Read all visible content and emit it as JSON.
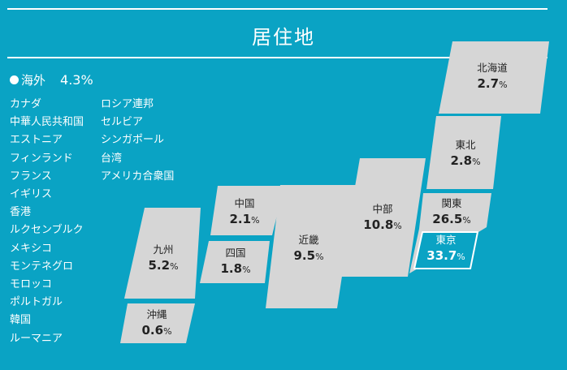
{
  "title": "居住地",
  "overseas": {
    "label": "海外",
    "percent": "4.3%",
    "countries_col1": [
      "カナダ",
      "中華人民共和国",
      "エストニア",
      "フィンランド",
      "フランス",
      "イギリス",
      "香港",
      "ルクセンブルク",
      "メキシコ",
      "モンテネグロ",
      "モロッコ",
      "ポルトガル",
      "韓国",
      "ルーマニア"
    ],
    "countries_col2": [
      "ロシア連邦",
      "セルビア",
      "シンガポール",
      "台湾",
      "アメリカ合衆国"
    ]
  },
  "chart_data": {
    "type": "table",
    "title": "居住地",
    "unit": "%",
    "regions": [
      {
        "name": "北海道",
        "value": 2.7
      },
      {
        "name": "東北",
        "value": 2.8
      },
      {
        "name": "関東",
        "value": 26.5
      },
      {
        "name": "東京",
        "value": 33.7,
        "highlight": true
      },
      {
        "name": "中部",
        "value": 10.8
      },
      {
        "name": "近畿",
        "value": 9.5
      },
      {
        "name": "中国",
        "value": 2.1
      },
      {
        "name": "四国",
        "value": 1.8
      },
      {
        "name": "九州",
        "value": 5.2
      },
      {
        "name": "沖縄",
        "value": 0.6
      },
      {
        "name": "海外",
        "value": 4.3
      }
    ]
  },
  "colors": {
    "background": "#0aa3c4",
    "region_fill": "#d6d6d6",
    "highlight_fill": "#0aa3c4",
    "text_dark": "#222222",
    "text_light": "#ffffff"
  }
}
